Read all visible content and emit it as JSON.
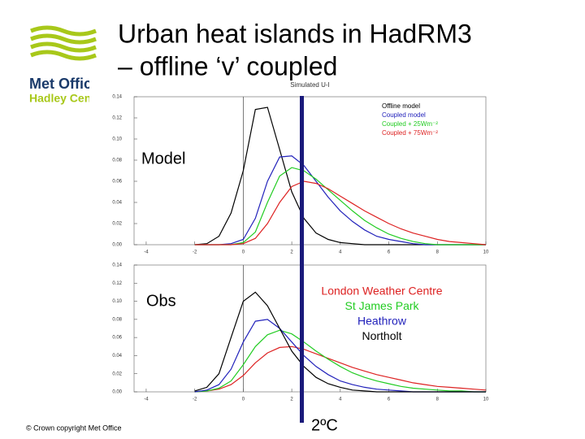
{
  "slide": {
    "title_lines": [
      "Urban heat islands in HadRM3",
      "– offline ‘v’ coupled"
    ],
    "logo_lines": [
      "Met Office",
      "Hadley Centre"
    ],
    "label_model": "Model",
    "label_obs": "Obs",
    "scale_label": "2ºC",
    "footer": "© Crown copyright   Met Office"
  },
  "chart_data": [
    {
      "type": "line",
      "title": "Simulated U-I",
      "x": [
        -2,
        -1.5,
        -1,
        -0.5,
        0,
        0.5,
        1,
        1.5,
        2,
        2.5,
        3,
        3.5,
        4,
        4.5,
        5,
        5.5,
        6,
        6.5,
        7,
        7.5,
        8,
        8.5,
        9,
        9.5,
        10
      ],
      "xlim": [
        -4.5,
        10
      ],
      "xticks": [
        -4,
        -2,
        0,
        2,
        4,
        6,
        8,
        10
      ],
      "ylim": [
        0,
        0.14
      ],
      "yticks": [
        {
          "value": 0,
          "label": "0.00"
        },
        {
          "value": 0.02,
          "label": "0.02"
        },
        {
          "value": 0.04,
          "label": "0.04"
        },
        {
          "value": 0.06,
          "label": "0.06"
        },
        {
          "value": 0.08,
          "label": "0.08"
        },
        {
          "value": 0.1,
          "label": "0.10"
        },
        {
          "value": 0.12,
          "label": "0.12"
        },
        {
          "value": 0.14,
          "label": "0.14"
        }
      ],
      "series": [
        {
          "name": "Offline model",
          "color": "#000000",
          "values": [
            0,
            0.001,
            0.008,
            0.03,
            0.07,
            0.128,
            0.13,
            0.09,
            0.05,
            0.025,
            0.011,
            0.005,
            0.002,
            0.001,
            0,
            0,
            0,
            0,
            0,
            0,
            0,
            0,
            0,
            0,
            0
          ]
        },
        {
          "name": "Coupled model",
          "color": "#2222bb",
          "values": [
            0,
            0,
            0,
            0.001,
            0.005,
            0.025,
            0.06,
            0.083,
            0.084,
            0.075,
            0.06,
            0.045,
            0.032,
            0.022,
            0.014,
            0.008,
            0.005,
            0.003,
            0.001,
            0,
            0,
            0,
            0,
            0,
            0
          ]
        },
        {
          "name": "Coupled + 25Wm⁻²",
          "color": "#22cc22",
          "values": [
            0,
            0,
            0,
            0,
            0.002,
            0.012,
            0.04,
            0.065,
            0.073,
            0.07,
            0.062,
            0.052,
            0.042,
            0.032,
            0.023,
            0.016,
            0.01,
            0.006,
            0.003,
            0.001,
            0,
            0,
            0,
            0,
            0
          ]
        },
        {
          "name": "Coupled + 75Wm⁻²",
          "color": "#dd2222",
          "values": [
            0,
            0,
            0,
            0,
            0.001,
            0.006,
            0.02,
            0.04,
            0.055,
            0.06,
            0.058,
            0.053,
            0.046,
            0.039,
            0.032,
            0.026,
            0.02,
            0.015,
            0.011,
            0.008,
            0.005,
            0.003,
            0.002,
            0.001,
            0
          ]
        }
      ]
    },
    {
      "type": "line",
      "x": [
        -2,
        -1.5,
        -1,
        -0.5,
        0,
        0.5,
        1,
        1.5,
        2,
        2.5,
        3,
        3.5,
        4,
        4.5,
        5,
        5.5,
        6,
        6.5,
        7,
        7.5,
        8,
        8.5,
        9,
        9.5,
        10
      ],
      "xlim": [
        -4.5,
        10
      ],
      "xticks": [
        -4,
        -2,
        0,
        2,
        4,
        6,
        8,
        10
      ],
      "ylim": [
        0,
        0.14
      ],
      "yticks": [
        {
          "value": 0,
          "label": "0.00"
        },
        {
          "value": 0.02,
          "label": "0.02"
        },
        {
          "value": 0.04,
          "label": "0.04"
        },
        {
          "value": 0.06,
          "label": "0.06"
        },
        {
          "value": 0.08,
          "label": "0.08"
        },
        {
          "value": 0.1,
          "label": "0.10"
        },
        {
          "value": 0.12,
          "label": "0.12"
        },
        {
          "value": 0.14,
          "label": "0.14"
        }
      ],
      "series": [
        {
          "name": "London Weather Centre",
          "color": "#dd2222",
          "values": [
            0,
            0.001,
            0.003,
            0.008,
            0.018,
            0.032,
            0.043,
            0.049,
            0.05,
            0.047,
            0.042,
            0.037,
            0.032,
            0.027,
            0.023,
            0.019,
            0.016,
            0.013,
            0.01,
            0.008,
            0.006,
            0.005,
            0.004,
            0.003,
            0.002
          ]
        },
        {
          "name": "St James Park",
          "color": "#22cc22",
          "values": [
            0,
            0.001,
            0.004,
            0.012,
            0.03,
            0.05,
            0.063,
            0.068,
            0.064,
            0.055,
            0.045,
            0.036,
            0.028,
            0.021,
            0.016,
            0.012,
            0.009,
            0.006,
            0.004,
            0.003,
            0.002,
            0.001,
            0.001,
            0,
            0
          ]
        },
        {
          "name": "Heathrow",
          "color": "#2222bb",
          "values": [
            0,
            0.002,
            0.008,
            0.025,
            0.055,
            0.078,
            0.08,
            0.07,
            0.055,
            0.04,
            0.028,
            0.019,
            0.012,
            0.008,
            0.005,
            0.003,
            0.002,
            0.001,
            0,
            0,
            0,
            0,
            0,
            0,
            0
          ]
        },
        {
          "name": "Northolt",
          "color": "#000000",
          "values": [
            0.001,
            0.005,
            0.02,
            0.06,
            0.1,
            0.11,
            0.095,
            0.07,
            0.045,
            0.028,
            0.016,
            0.009,
            0.005,
            0.002,
            0.001,
            0,
            0,
            0,
            0,
            0,
            0,
            0,
            0,
            0,
            0
          ]
        }
      ]
    }
  ]
}
